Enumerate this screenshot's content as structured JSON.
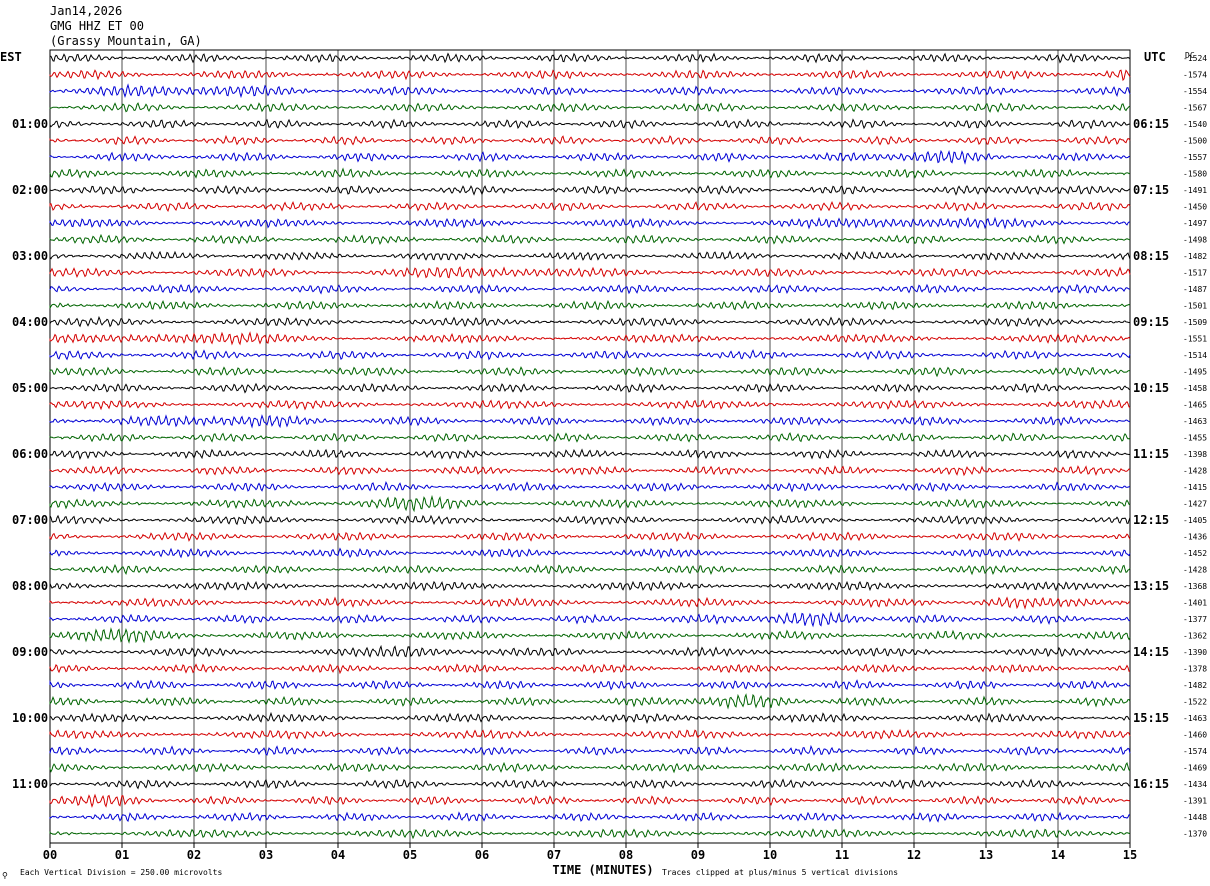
{
  "header": {
    "date": "Jan14,2026",
    "station": "GMG HHZ ET 00",
    "location": "(Grassy Mountain, GA)"
  },
  "labels": {
    "left_tz": "EST",
    "right_tz": "UTC",
    "dc_header": "DC",
    "x_title": "TIME (MINUTES)",
    "footer_left": "Each Vertical Division =  250.00 microvolts",
    "footer_right": "Traces clipped at plus/minus 5 vertical divisions",
    "corner_mark": "⚲"
  },
  "colors": {
    "cycle": [
      "#000000",
      "#d40000",
      "#0000d4",
      "#006400"
    ],
    "grid": "#000000",
    "background": "#ffffff"
  },
  "chart_data": {
    "type": "line",
    "title": "GMG HHZ ET 00",
    "xlabel": "TIME (MINUTES)",
    "x_ticks": [
      "00",
      "01",
      "02",
      "03",
      "04",
      "05",
      "06",
      "07",
      "08",
      "09",
      "10",
      "11",
      "12",
      "13",
      "14",
      "15"
    ],
    "xlim": [
      0,
      15
    ],
    "rows_per_hour": 4,
    "left_hour_labels": [
      "01:00",
      "02:00",
      "03:00",
      "04:00",
      "05:00",
      "06:00",
      "07:00",
      "08:00",
      "09:00",
      "10:00",
      "11:00"
    ],
    "right_hour_labels": [
      "06:15",
      "07:15",
      "08:15",
      "09:15",
      "10:15",
      "11:15",
      "12:15",
      "13:15",
      "14:15",
      "15:15",
      "16:15"
    ],
    "dc_offsets": [
      -1524,
      -1574,
      -1554,
      -1567,
      -1540,
      -1500,
      -1557,
      -1580,
      -1491,
      -1450,
      -1497,
      -1498,
      -1482,
      -1517,
      -1487,
      -1501,
      -1509,
      -1551,
      -1514,
      -1495,
      -1458,
      -1465,
      -1463,
      -1455,
      -1398,
      -1428,
      -1415,
      -1427,
      -1405,
      -1436,
      -1452,
      -1428,
      -1368,
      -1401,
      -1377,
      -1362,
      -1390,
      -1378,
      -1482,
      -1522,
      -1463,
      -1460,
      -1574,
      -1469,
      -1434,
      -1391,
      -1448,
      -1370
    ]
  }
}
